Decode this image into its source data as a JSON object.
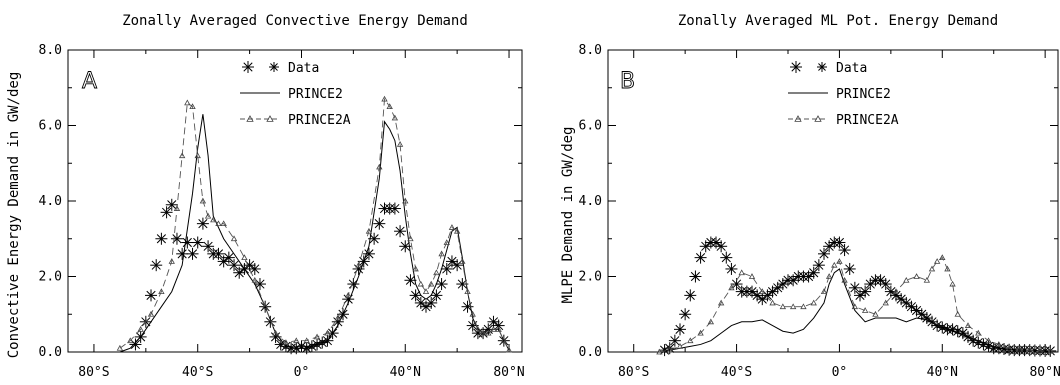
{
  "chart_data": [
    {
      "type": "line",
      "title": "Zonally Averaged Convective Energy Demand",
      "panel_letter": "A",
      "ylabel": "Convective Energy Demand in GW/deg",
      "xlabel": "",
      "xlim": [
        -90,
        85
      ],
      "ylim": [
        0,
        8
      ],
      "x_ticks": [
        -80,
        -40,
        0,
        40,
        80
      ],
      "x_tick_labels": [
        "80°S",
        "40°S",
        "0°",
        "40°N",
        "80°N"
      ],
      "y_ticks": [
        0,
        2,
        4,
        6,
        8
      ],
      "y_tick_labels": [
        "0.0",
        "2.0",
        "4.0",
        "6.0",
        "8.0"
      ],
      "legend_position": "top-center",
      "grid": false,
      "series": [
        {
          "name": "Data",
          "style": "asterisk-markers",
          "x": [
            -64,
            -62,
            -60,
            -58,
            -56,
            -54,
            -52,
            -50,
            -48,
            -46,
            -44,
            -42,
            -40,
            -38,
            -36,
            -34,
            -32,
            -30,
            -28,
            -26,
            -24,
            -22,
            -20,
            -18,
            -16,
            -14,
            -12,
            -10,
            -8,
            -6,
            -4,
            -2,
            0,
            2,
            4,
            6,
            8,
            10,
            12,
            14,
            16,
            18,
            20,
            22,
            24,
            26,
            28,
            30,
            32,
            34,
            36,
            38,
            40,
            42,
            44,
            46,
            48,
            50,
            52,
            54,
            56,
            58,
            60,
            62,
            64,
            66,
            68,
            70,
            72,
            74,
            76,
            78
          ],
          "values": [
            0.2,
            0.4,
            0.8,
            1.5,
            2.3,
            3.0,
            3.7,
            3.9,
            3.0,
            2.6,
            2.9,
            2.6,
            2.9,
            3.4,
            2.8,
            2.6,
            2.6,
            2.4,
            2.5,
            2.3,
            2.1,
            2.2,
            2.3,
            2.2,
            1.8,
            1.2,
            0.8,
            0.4,
            0.2,
            0.15,
            0.1,
            0.1,
            0.15,
            0.1,
            0.15,
            0.2,
            0.25,
            0.3,
            0.5,
            0.8,
            1.0,
            1.4,
            1.8,
            2.2,
            2.4,
            2.6,
            3.0,
            3.4,
            3.8,
            3.8,
            3.8,
            3.2,
            2.8,
            1.9,
            1.5,
            1.3,
            1.2,
            1.3,
            1.5,
            1.8,
            2.2,
            2.4,
            2.3,
            1.8,
            1.2,
            0.7,
            0.5,
            0.5,
            0.6,
            0.8,
            0.7,
            0.3
          ]
        },
        {
          "name": "PRINCE2",
          "style": "solid",
          "x": [
            -70,
            -66,
            -62,
            -58,
            -54,
            -50,
            -46,
            -42,
            -40,
            -38,
            -36,
            -34,
            -30,
            -26,
            -22,
            -18,
            -14,
            -10,
            -6,
            -2,
            2,
            6,
            10,
            14,
            18,
            22,
            26,
            30,
            32,
            34,
            36,
            38,
            40,
            42,
            44,
            46,
            48,
            50,
            52,
            54,
            56,
            58,
            60,
            62,
            64,
            66,
            68,
            70,
            72,
            74,
            76,
            78,
            80
          ],
          "values": [
            0.0,
            0.1,
            0.4,
            0.8,
            1.2,
            1.6,
            2.3,
            4.2,
            5.4,
            6.3,
            5.2,
            3.6,
            3.0,
            2.6,
            2.2,
            1.8,
            1.2,
            0.5,
            0.15,
            0.1,
            0.1,
            0.2,
            0.3,
            0.7,
            1.3,
            2.0,
            2.8,
            4.6,
            6.1,
            5.9,
            5.6,
            4.8,
            3.6,
            2.6,
            1.8,
            1.5,
            1.4,
            1.5,
            1.8,
            2.2,
            2.7,
            3.2,
            3.3,
            2.5,
            1.6,
            0.9,
            0.6,
            0.5,
            0.5,
            0.6,
            0.6,
            0.3,
            0.05
          ]
        },
        {
          "name": "PRINCE2A",
          "style": "dashed-triangles",
          "x": [
            -70,
            -66,
            -62,
            -58,
            -54,
            -50,
            -48,
            -46,
            -44,
            -42,
            -40,
            -38,
            -36,
            -34,
            -32,
            -30,
            -26,
            -22,
            -18,
            -14,
            -10,
            -6,
            -2,
            2,
            6,
            10,
            14,
            18,
            22,
            26,
            30,
            32,
            34,
            36,
            38,
            40,
            42,
            44,
            46,
            48,
            50,
            52,
            54,
            56,
            58,
            60,
            62,
            64,
            66,
            68,
            70,
            72,
            74,
            76,
            78,
            80
          ],
          "values": [
            0.1,
            0.3,
            0.6,
            1.0,
            1.6,
            2.4,
            3.8,
            5.2,
            6.6,
            6.5,
            5.2,
            4.0,
            3.6,
            3.5,
            3.4,
            3.4,
            3.0,
            2.5,
            1.9,
            1.2,
            0.5,
            0.25,
            0.3,
            0.3,
            0.4,
            0.5,
            0.9,
            1.5,
            2.3,
            3.2,
            4.9,
            6.7,
            6.5,
            6.2,
            5.5,
            4.0,
            3.0,
            2.2,
            1.8,
            1.6,
            1.8,
            2.1,
            2.6,
            2.9,
            3.3,
            3.2,
            2.4,
            1.6,
            1.0,
            0.6,
            0.5,
            0.5,
            0.6,
            0.6,
            0.3,
            0.05
          ]
        }
      ]
    },
    {
      "type": "line",
      "title": "Zonally Averaged ML Pot. Energy Demand",
      "panel_letter": "B",
      "ylabel": "MLPE Demand in GW/deg",
      "xlabel": "",
      "xlim": [
        -90,
        85
      ],
      "ylim": [
        0,
        8
      ],
      "x_ticks": [
        -80,
        -40,
        0,
        40,
        80
      ],
      "x_tick_labels": [
        "80°S",
        "40°S",
        "0°",
        "40°N",
        "80°N"
      ],
      "y_ticks": [
        0,
        2,
        4,
        6,
        8
      ],
      "y_tick_labels": [
        "0.0",
        "2.0",
        "4.0",
        "6.0",
        "8.0"
      ],
      "legend_position": "top-center",
      "grid": false,
      "series": [
        {
          "name": "Data",
          "style": "asterisk-markers",
          "x": [
            -68,
            -66,
            -64,
            -62,
            -60,
            -58,
            -56,
            -54,
            -52,
            -50,
            -48,
            -46,
            -44,
            -42,
            -40,
            -38,
            -36,
            -34,
            -32,
            -30,
            -28,
            -26,
            -24,
            -22,
            -20,
            -18,
            -16,
            -14,
            -12,
            -10,
            -8,
            -6,
            -4,
            -2,
            0,
            2,
            4,
            6,
            8,
            10,
            12,
            14,
            16,
            18,
            20,
            22,
            24,
            26,
            28,
            30,
            32,
            34,
            36,
            38,
            40,
            42,
            44,
            46,
            48,
            50,
            52,
            54,
            56,
            58,
            60,
            62,
            64,
            66,
            68,
            70,
            72,
            74,
            76,
            78,
            80,
            82
          ],
          "values": [
            0.05,
            0.1,
            0.3,
            0.6,
            1.0,
            1.5,
            2.0,
            2.5,
            2.8,
            2.9,
            2.9,
            2.8,
            2.5,
            2.2,
            1.8,
            1.6,
            1.6,
            1.6,
            1.5,
            1.4,
            1.5,
            1.6,
            1.7,
            1.8,
            1.9,
            1.9,
            2.0,
            2.0,
            2.0,
            2.1,
            2.3,
            2.6,
            2.8,
            2.9,
            2.9,
            2.7,
            2.2,
            1.7,
            1.5,
            1.6,
            1.8,
            1.9,
            1.9,
            1.8,
            1.6,
            1.5,
            1.4,
            1.3,
            1.2,
            1.1,
            1.0,
            0.9,
            0.8,
            0.7,
            0.65,
            0.6,
            0.6,
            0.55,
            0.5,
            0.4,
            0.3,
            0.25,
            0.2,
            0.15,
            0.1,
            0.1,
            0.08,
            0.06,
            0.05,
            0.05,
            0.05,
            0.05,
            0.04,
            0.04,
            0.03,
            0.03
          ]
        },
        {
          "name": "PRINCE2",
          "style": "solid",
          "x": [
            -70,
            -66,
            -62,
            -58,
            -54,
            -50,
            -46,
            -42,
            -38,
            -34,
            -30,
            -26,
            -22,
            -18,
            -14,
            -10,
            -6,
            -4,
            -2,
            0,
            2,
            6,
            10,
            14,
            18,
            22,
            26,
            30,
            34,
            38,
            42,
            46,
            50,
            54,
            58,
            62,
            66,
            70,
            74,
            78,
            82
          ],
          "values": [
            0.0,
            0.05,
            0.1,
            0.15,
            0.2,
            0.3,
            0.5,
            0.7,
            0.8,
            0.8,
            0.85,
            0.7,
            0.55,
            0.5,
            0.6,
            0.9,
            1.3,
            1.8,
            2.1,
            2.2,
            1.8,
            1.1,
            0.8,
            0.9,
            0.9,
            0.9,
            0.8,
            0.9,
            0.85,
            0.7,
            0.6,
            0.5,
            0.4,
            0.3,
            0.2,
            0.1,
            0.08,
            0.05,
            0.05,
            0.03,
            0.02
          ]
        },
        {
          "name": "PRINCE2A",
          "style": "dashed-triangles",
          "x": [
            -70,
            -66,
            -62,
            -58,
            -54,
            -50,
            -46,
            -42,
            -38,
            -34,
            -30,
            -26,
            -22,
            -18,
            -14,
            -10,
            -6,
            -4,
            -2,
            0,
            2,
            6,
            10,
            14,
            18,
            22,
            26,
            30,
            34,
            36,
            38,
            40,
            42,
            44,
            46,
            50,
            54,
            58,
            62,
            66,
            70,
            74,
            78,
            82
          ],
          "values": [
            0.0,
            0.05,
            0.15,
            0.3,
            0.5,
            0.8,
            1.3,
            1.7,
            2.1,
            2.0,
            1.6,
            1.3,
            1.2,
            1.2,
            1.2,
            1.3,
            1.6,
            2.0,
            2.3,
            2.4,
            1.9,
            1.2,
            1.1,
            1.0,
            1.3,
            1.6,
            1.9,
            2.0,
            1.9,
            2.2,
            2.4,
            2.5,
            2.2,
            1.8,
            1.0,
            0.7,
            0.5,
            0.3,
            0.2,
            0.1,
            0.08,
            0.05,
            0.03,
            0.02
          ]
        }
      ]
    }
  ]
}
